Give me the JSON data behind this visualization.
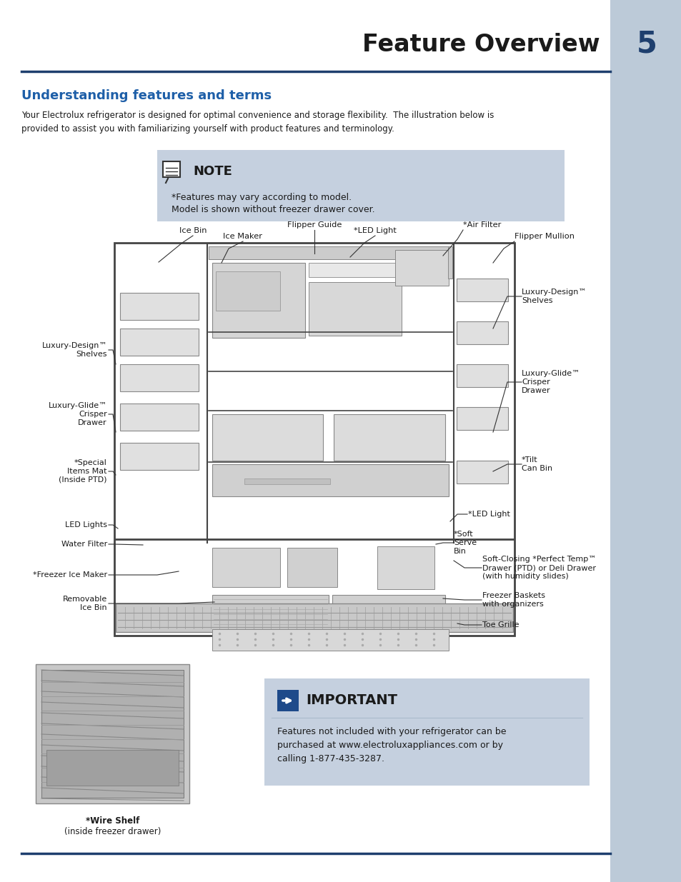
{
  "page_bg": "#ffffff",
  "sidebar_color": "#bccad8",
  "title_text": "Feature Overview",
  "title_color": "#1a1a1a",
  "page_num": "5",
  "page_num_color": "#1e3f6e",
  "section_title": "Understanding features and terms",
  "section_title_color": "#1e5fa8",
  "body_text": "Your Electrolux refrigerator is designed for optimal convenience and storage flexibility.  The illustration below is\nprovided to assist you with familiarizing yourself with product features and terminology.",
  "body_color": "#1a1a1a",
  "note_bg": "#c5d0df",
  "note_title": "NOTE",
  "note_line1": "*Features may vary according to model.",
  "note_line2": "Model is shown without freezer drawer cover.",
  "important_bg": "#c5d0df",
  "important_title": "IMPORTANT",
  "important_text": "Features not included with your refrigerator can be\npurchased at www.electroluxappliances.com or by\ncalling 1-877-435-3287.",
  "divider_color": "#1e3f6e",
  "wire_shelf_label_bold": "*Wire Shelf",
  "wire_shelf_label_normal": " (inside freezer drawer)"
}
